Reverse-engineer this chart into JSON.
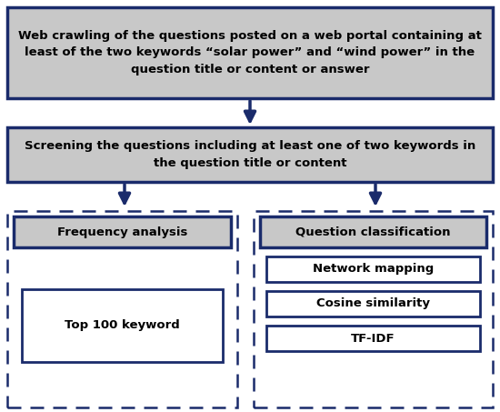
{
  "bg_color": "#ffffff",
  "box_fill": "#c8c8c8",
  "box_edge": "#1a2b6b",
  "white_fill": "#ffffff",
  "arrow_color": "#1a2b6b",
  "text_color": "#000000",
  "box1_text": "Web crawling of the questions posted on a web portal containing at\nleast of the two keywords “solar power” and “wind power” in the\nquestion title or content or answer",
  "box2_text": "Screening the questions including at least one of two keywords in\nthe question title or content",
  "box3_text": "Frequency analysis",
  "box4_text": "Question classification",
  "box5_text": "Top 100 keyword",
  "box6_text": "Network mapping",
  "box7_text": "Cosine similarity",
  "box8_text": "TF-IDF",
  "font_size_main": 9.5,
  "font_size_sub": 9.5
}
